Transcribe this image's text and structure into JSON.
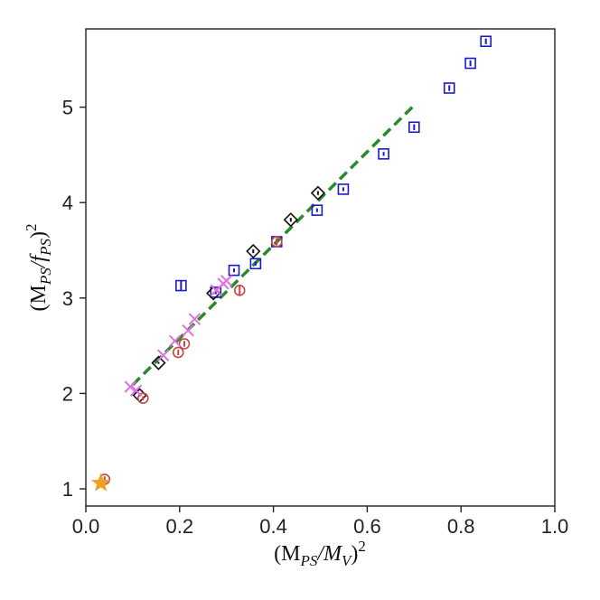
{
  "chart_data": {
    "type": "scatter",
    "title": "",
    "xlabel_parts": [
      "(M",
      "PS",
      "/M",
      "V",
      ")",
      "2"
    ],
    "ylabel_parts": [
      "(M",
      "PS",
      "/f",
      "PS",
      ")",
      "2"
    ],
    "xlim": [
      0.0,
      1.0
    ],
    "ylim": [
      0.82,
      5.82
    ],
    "xticks": [
      0.0,
      0.2,
      0.4,
      0.6,
      0.8,
      1.0
    ],
    "xtick_labels": [
      "0.0",
      "0.2",
      "0.4",
      "0.6",
      "0.8",
      "1.0"
    ],
    "yticks": [
      1,
      2,
      3,
      4,
      5
    ],
    "ytick_labels": [
      "1",
      "2",
      "3",
      "4",
      "5"
    ],
    "grid": false,
    "legend": "none",
    "series": [
      {
        "marker": "square",
        "color": "#1a1acc",
        "points": [
          {
            "x": 0.203,
            "y": 3.13,
            "yerr": 0.05
          },
          {
            "x": 0.277,
            "y": 3.06,
            "yerr": 0.02
          },
          {
            "x": 0.316,
            "y": 3.29,
            "yerr": 0.02
          },
          {
            "x": 0.362,
            "y": 3.36,
            "yerr": 0.02
          },
          {
            "x": 0.407,
            "y": 3.59,
            "yerr": 0.03
          },
          {
            "x": 0.493,
            "y": 3.92,
            "yerr": 0.02
          },
          {
            "x": 0.549,
            "y": 4.14,
            "yerr": 0.02
          },
          {
            "x": 0.635,
            "y": 4.51,
            "yerr": 0.02
          },
          {
            "x": 0.7,
            "y": 4.79,
            "yerr": 0.03
          },
          {
            "x": 0.775,
            "y": 5.2,
            "yerr": 0.03
          },
          {
            "x": 0.82,
            "y": 5.46,
            "yerr": 0.03
          },
          {
            "x": 0.853,
            "y": 5.69,
            "yerr": 0.03
          }
        ]
      },
      {
        "marker": "diamond",
        "color": "#111111",
        "points": [
          {
            "x": 0.115,
            "y": 1.98,
            "yerr": 0.01
          },
          {
            "x": 0.155,
            "y": 2.32,
            "yerr": 0.01
          },
          {
            "x": 0.272,
            "y": 3.05,
            "yerr": 0.01
          },
          {
            "x": 0.357,
            "y": 3.49,
            "yerr": 0.02
          },
          {
            "x": 0.437,
            "y": 3.82,
            "yerr": 0.02
          },
          {
            "x": 0.495,
            "y": 4.1,
            "yerr": 0.02
          }
        ]
      },
      {
        "marker": "circle",
        "color": "#cc4444",
        "points": [
          {
            "x": 0.04,
            "y": 1.1,
            "yerr": 0.03
          },
          {
            "x": 0.122,
            "y": 1.95,
            "yerr": 0.02
          },
          {
            "x": 0.197,
            "y": 2.43,
            "yerr": 0.03
          },
          {
            "x": 0.21,
            "y": 2.52,
            "yerr": 0.03
          },
          {
            "x": 0.328,
            "y": 3.08,
            "yerr": 0.05
          },
          {
            "x": 0.407,
            "y": 3.59,
            "yerr": 0.04
          }
        ]
      },
      {
        "marker": "x",
        "color": "#e070e0",
        "points": [
          {
            "x": 0.095,
            "y": 2.07
          },
          {
            "x": 0.107,
            "y": 2.03
          },
          {
            "x": 0.165,
            "y": 2.4
          },
          {
            "x": 0.19,
            "y": 2.55
          },
          {
            "x": 0.218,
            "y": 2.66
          },
          {
            "x": 0.232,
            "y": 2.78
          },
          {
            "x": 0.278,
            "y": 3.08
          },
          {
            "x": 0.293,
            "y": 3.15
          },
          {
            "x": 0.3,
            "y": 3.18
          }
        ]
      },
      {
        "marker": "star",
        "color": "#f0a020",
        "points": [
          {
            "x": 0.032,
            "y": 1.06
          }
        ]
      }
    ],
    "fit_line": {
      "style": "dashed",
      "color": "#2a8a2a",
      "x": [
        0.1,
        0.7
      ],
      "y": [
        2.09,
        5.02
      ]
    }
  }
}
